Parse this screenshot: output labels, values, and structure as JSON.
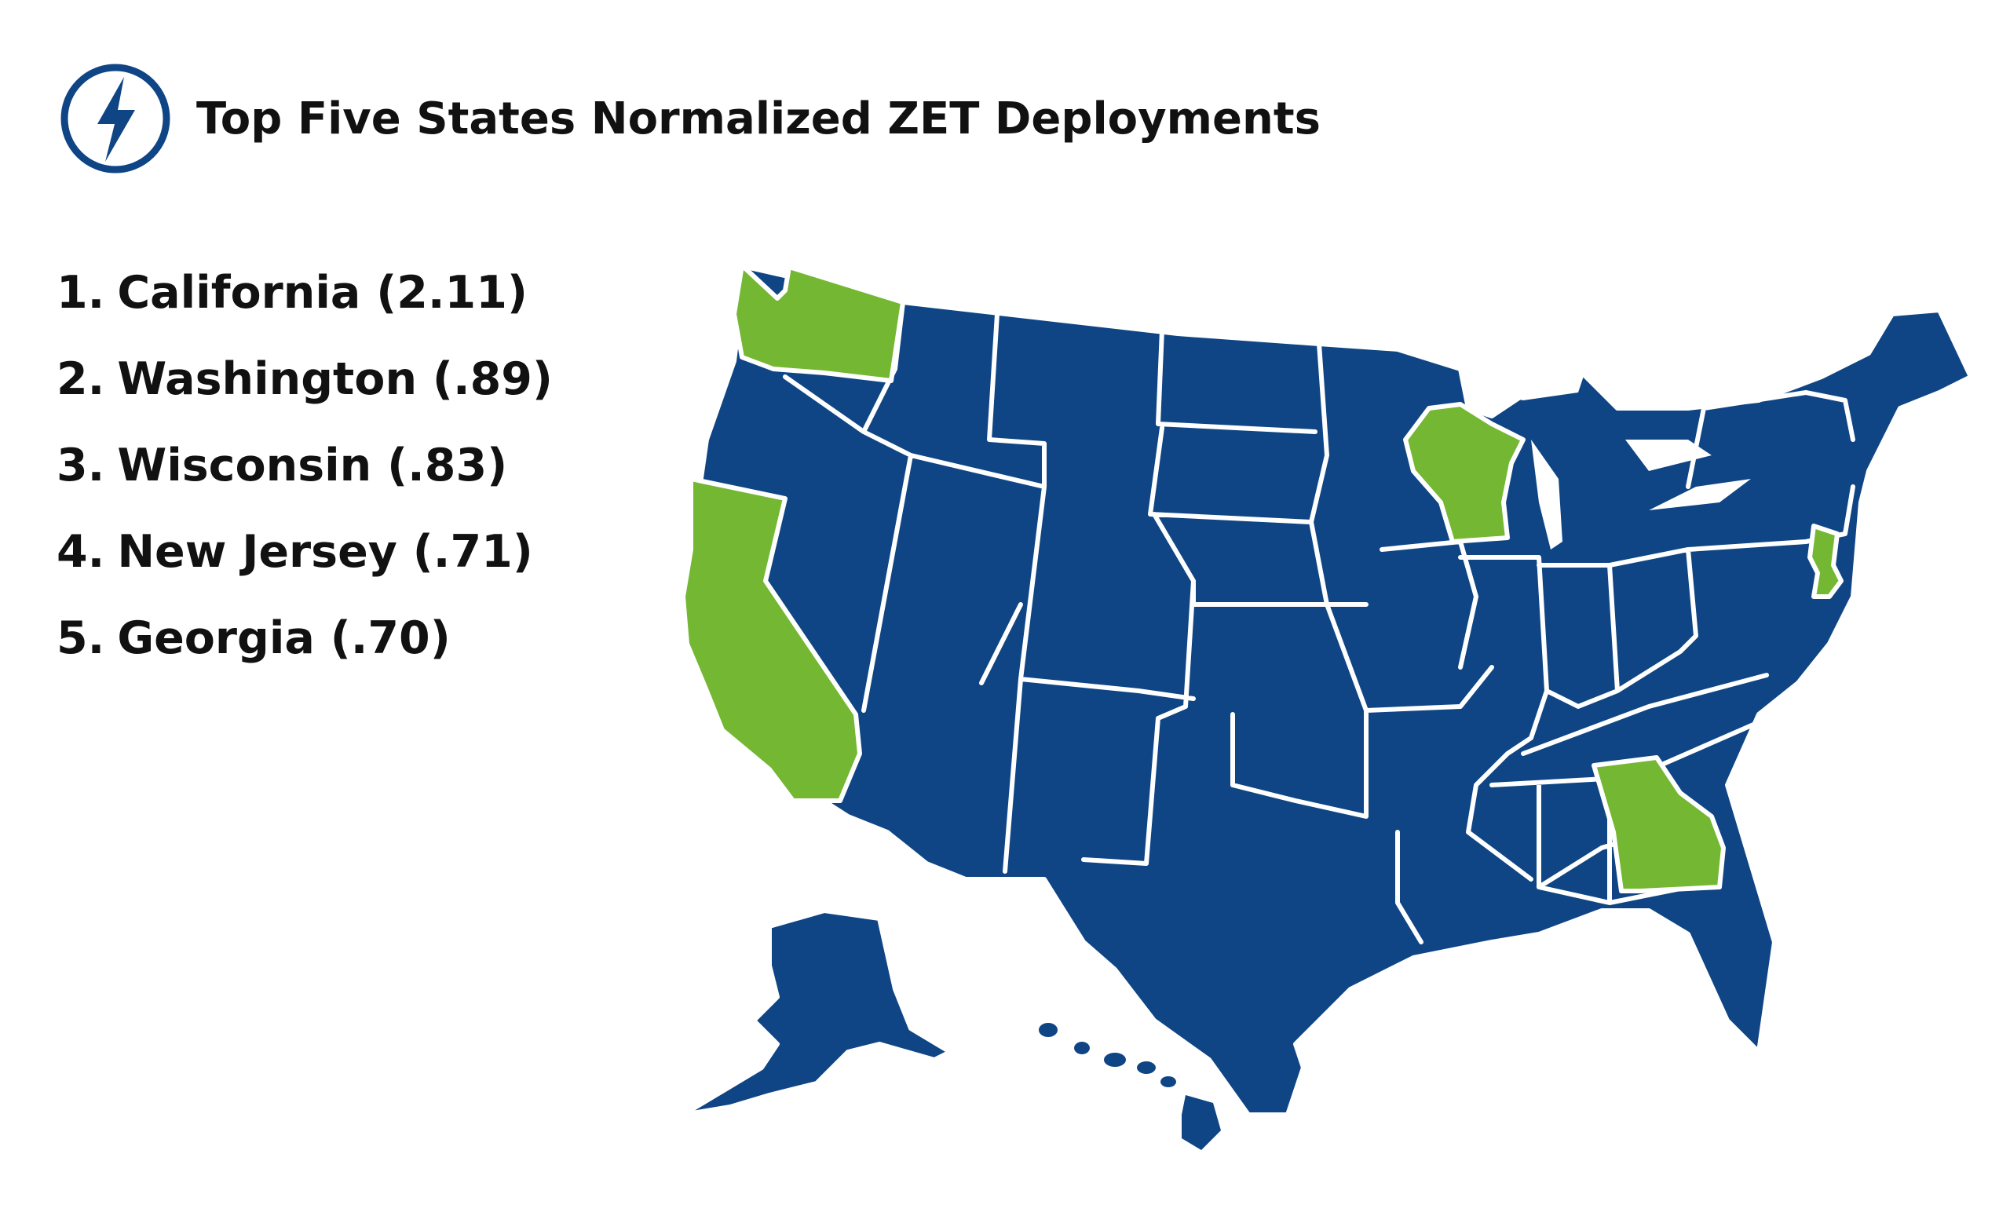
{
  "title": "Top Five States Normalized ZET Deployments",
  "logo_icon": "lightning-bolt-icon",
  "colors": {
    "highlight": "#74B733",
    "base": "#0F4584",
    "text": "#111111"
  },
  "ranking": [
    {
      "rank": "1.",
      "label": "California (2.11)",
      "state": "California",
      "value": 2.11
    },
    {
      "rank": "2.",
      "label": "Washington (.89)",
      "state": "Washington",
      "value": 0.89
    },
    {
      "rank": "3.",
      "label": "Wisconsin (.83)",
      "state": "Wisconsin",
      "value": 0.83
    },
    {
      "rank": "4.",
      "label": "New Jersey (.71)",
      "state": "New Jersey",
      "value": 0.71
    },
    {
      "rank": "5.",
      "label": "Georgia (.70)",
      "state": "Georgia",
      "value": 0.7
    }
  ],
  "map": {
    "region": "United States",
    "highlighted_states": [
      "California",
      "Washington",
      "Wisconsin",
      "New Jersey",
      "Georgia"
    ]
  }
}
